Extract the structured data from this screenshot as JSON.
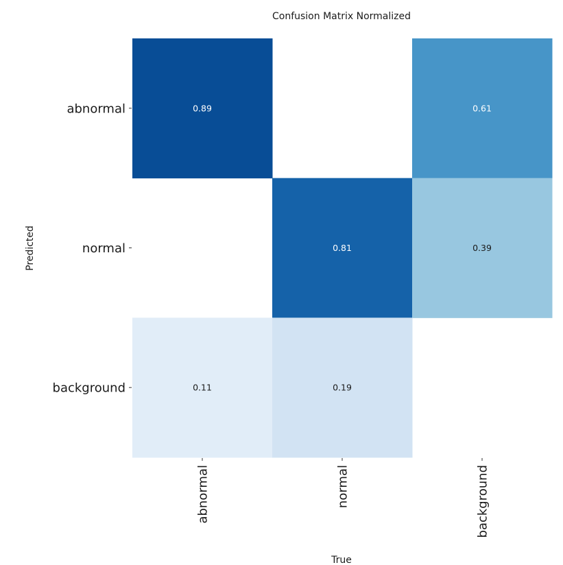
{
  "chart_data": {
    "type": "heatmap",
    "title": "Confusion Matrix Normalized",
    "xlabel": "True",
    "ylabel": "Predicted",
    "x_categories": [
      "abnormal",
      "normal",
      "background"
    ],
    "y_categories": [
      "abnormal",
      "normal",
      "background"
    ],
    "values": [
      [
        0.89,
        null,
        0.61
      ],
      [
        null,
        0.81,
        0.39
      ],
      [
        0.11,
        0.19,
        null
      ]
    ],
    "colormap": "Blues",
    "value_range": [
      0,
      1
    ],
    "colorbar": false,
    "grid": false
  }
}
